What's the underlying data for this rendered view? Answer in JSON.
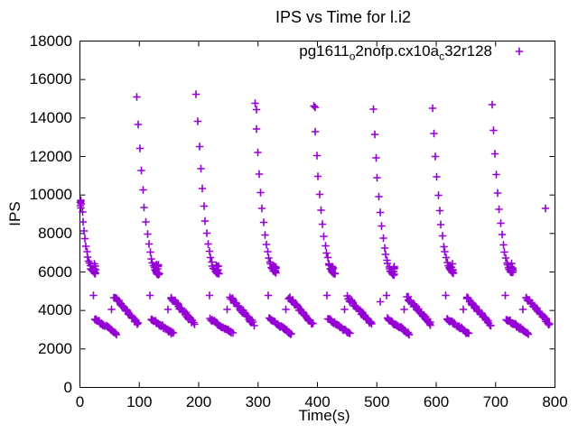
{
  "window": {
    "background": "#ffffff",
    "foreground": "#000000"
  },
  "chart_data": {
    "type": "scatter",
    "title": "IPS vs Time for l.i2",
    "xlabel": "Time(s)",
    "ylabel": "IPS",
    "xlim": [
      0,
      800
    ],
    "ylim": [
      0,
      18000
    ],
    "xticks": [
      0,
      100,
      200,
      300,
      400,
      500,
      600,
      700,
      800
    ],
    "yticks": [
      0,
      2000,
      4000,
      6000,
      8000,
      10000,
      12000,
      14000,
      16000,
      18000
    ],
    "grid": false,
    "legend_position": "inside top right",
    "legend": {
      "label_plain": "pg1611_o2nofp.cx10a_c32r128",
      "label_parts": [
        {
          "t": "pg1611"
        },
        {
          "t": "o",
          "sub": true
        },
        {
          "t": "2nofp.cx10a"
        },
        {
          "t": "c",
          "sub": true
        },
        {
          "t": "32r128"
        }
      ],
      "marker": "plus"
    },
    "marker": {
      "shape": "plus",
      "color": "#9400d3",
      "size": 4.2,
      "stroke": 1.6
    },
    "pattern": {
      "description": "Periodic sawtooth benchmark: every ~100s an upper decay curve from ~15000 down to ~5900, plus two descending lower streaks (3550->2800 and 4700->3300) per cycle with isolated points near 4800/4050.",
      "upper_profile_pos": [
        0,
        0.0625,
        0.125,
        0.1875,
        0.25,
        0.3125,
        0.375,
        0.4375,
        0.5,
        0.55,
        0.6,
        0.65,
        0.6875,
        0.725,
        0.7625,
        0.7875,
        0.8125,
        0.8375,
        0.8625,
        0.8875,
        0.9125,
        0.9375
      ],
      "upper_exponent": 2.6,
      "upper_cycles": [
        {
          "start": 2,
          "top": 9700,
          "duration": 26,
          "floor": 5950
        },
        {
          "start": 96,
          "top": 15100,
          "duration": 40,
          "floor": 5880
        },
        {
          "start": 196,
          "top": 15250,
          "duration": 40,
          "floor": 5900
        },
        {
          "start": 295,
          "top": 14780,
          "duration": 38,
          "floor": 5950
        },
        {
          "start": 394,
          "top": 14620,
          "duration": 38,
          "floor": 5900
        },
        {
          "start": 494,
          "top": 14480,
          "duration": 38,
          "floor": 5850
        },
        {
          "start": 594,
          "top": 14500,
          "duration": 38,
          "floor": 5950
        },
        {
          "start": 694,
          "top": 14700,
          "duration": 38,
          "floor": 5950
        }
      ],
      "upper_tail_extra": 6,
      "upper_tail_jitter": 90,
      "upper_head_jitter": 40,
      "tail_threshold": 8000,
      "lower_cycles_base": [
        25,
        120,
        220,
        319,
        418,
        518,
        618,
        718
      ],
      "streak_a": {
        "offset": 0,
        "length": 37,
        "v_start": 3560,
        "v_end": 2790,
        "points": 30,
        "jitter": 55
      },
      "streak_b": {
        "offset": 33,
        "length": 40,
        "v_start": 4680,
        "v_end": 3290,
        "points": 36,
        "jitter": 85
      },
      "iso_points": [
        {
          "dt": -2,
          "v": 4780
        },
        {
          "dt": 28,
          "v": 4050
        }
      ],
      "extra_points": [
        [
          0.4,
          9600
        ],
        [
          0.9,
          9450
        ],
        [
          1.3,
          9730
        ],
        [
          1.8,
          9330
        ],
        [
          2.4,
          9540
        ],
        [
          297,
          14430
        ],
        [
          396,
          14560
        ],
        [
          506,
          4450
        ],
        [
          784,
          9300
        ]
      ]
    }
  }
}
